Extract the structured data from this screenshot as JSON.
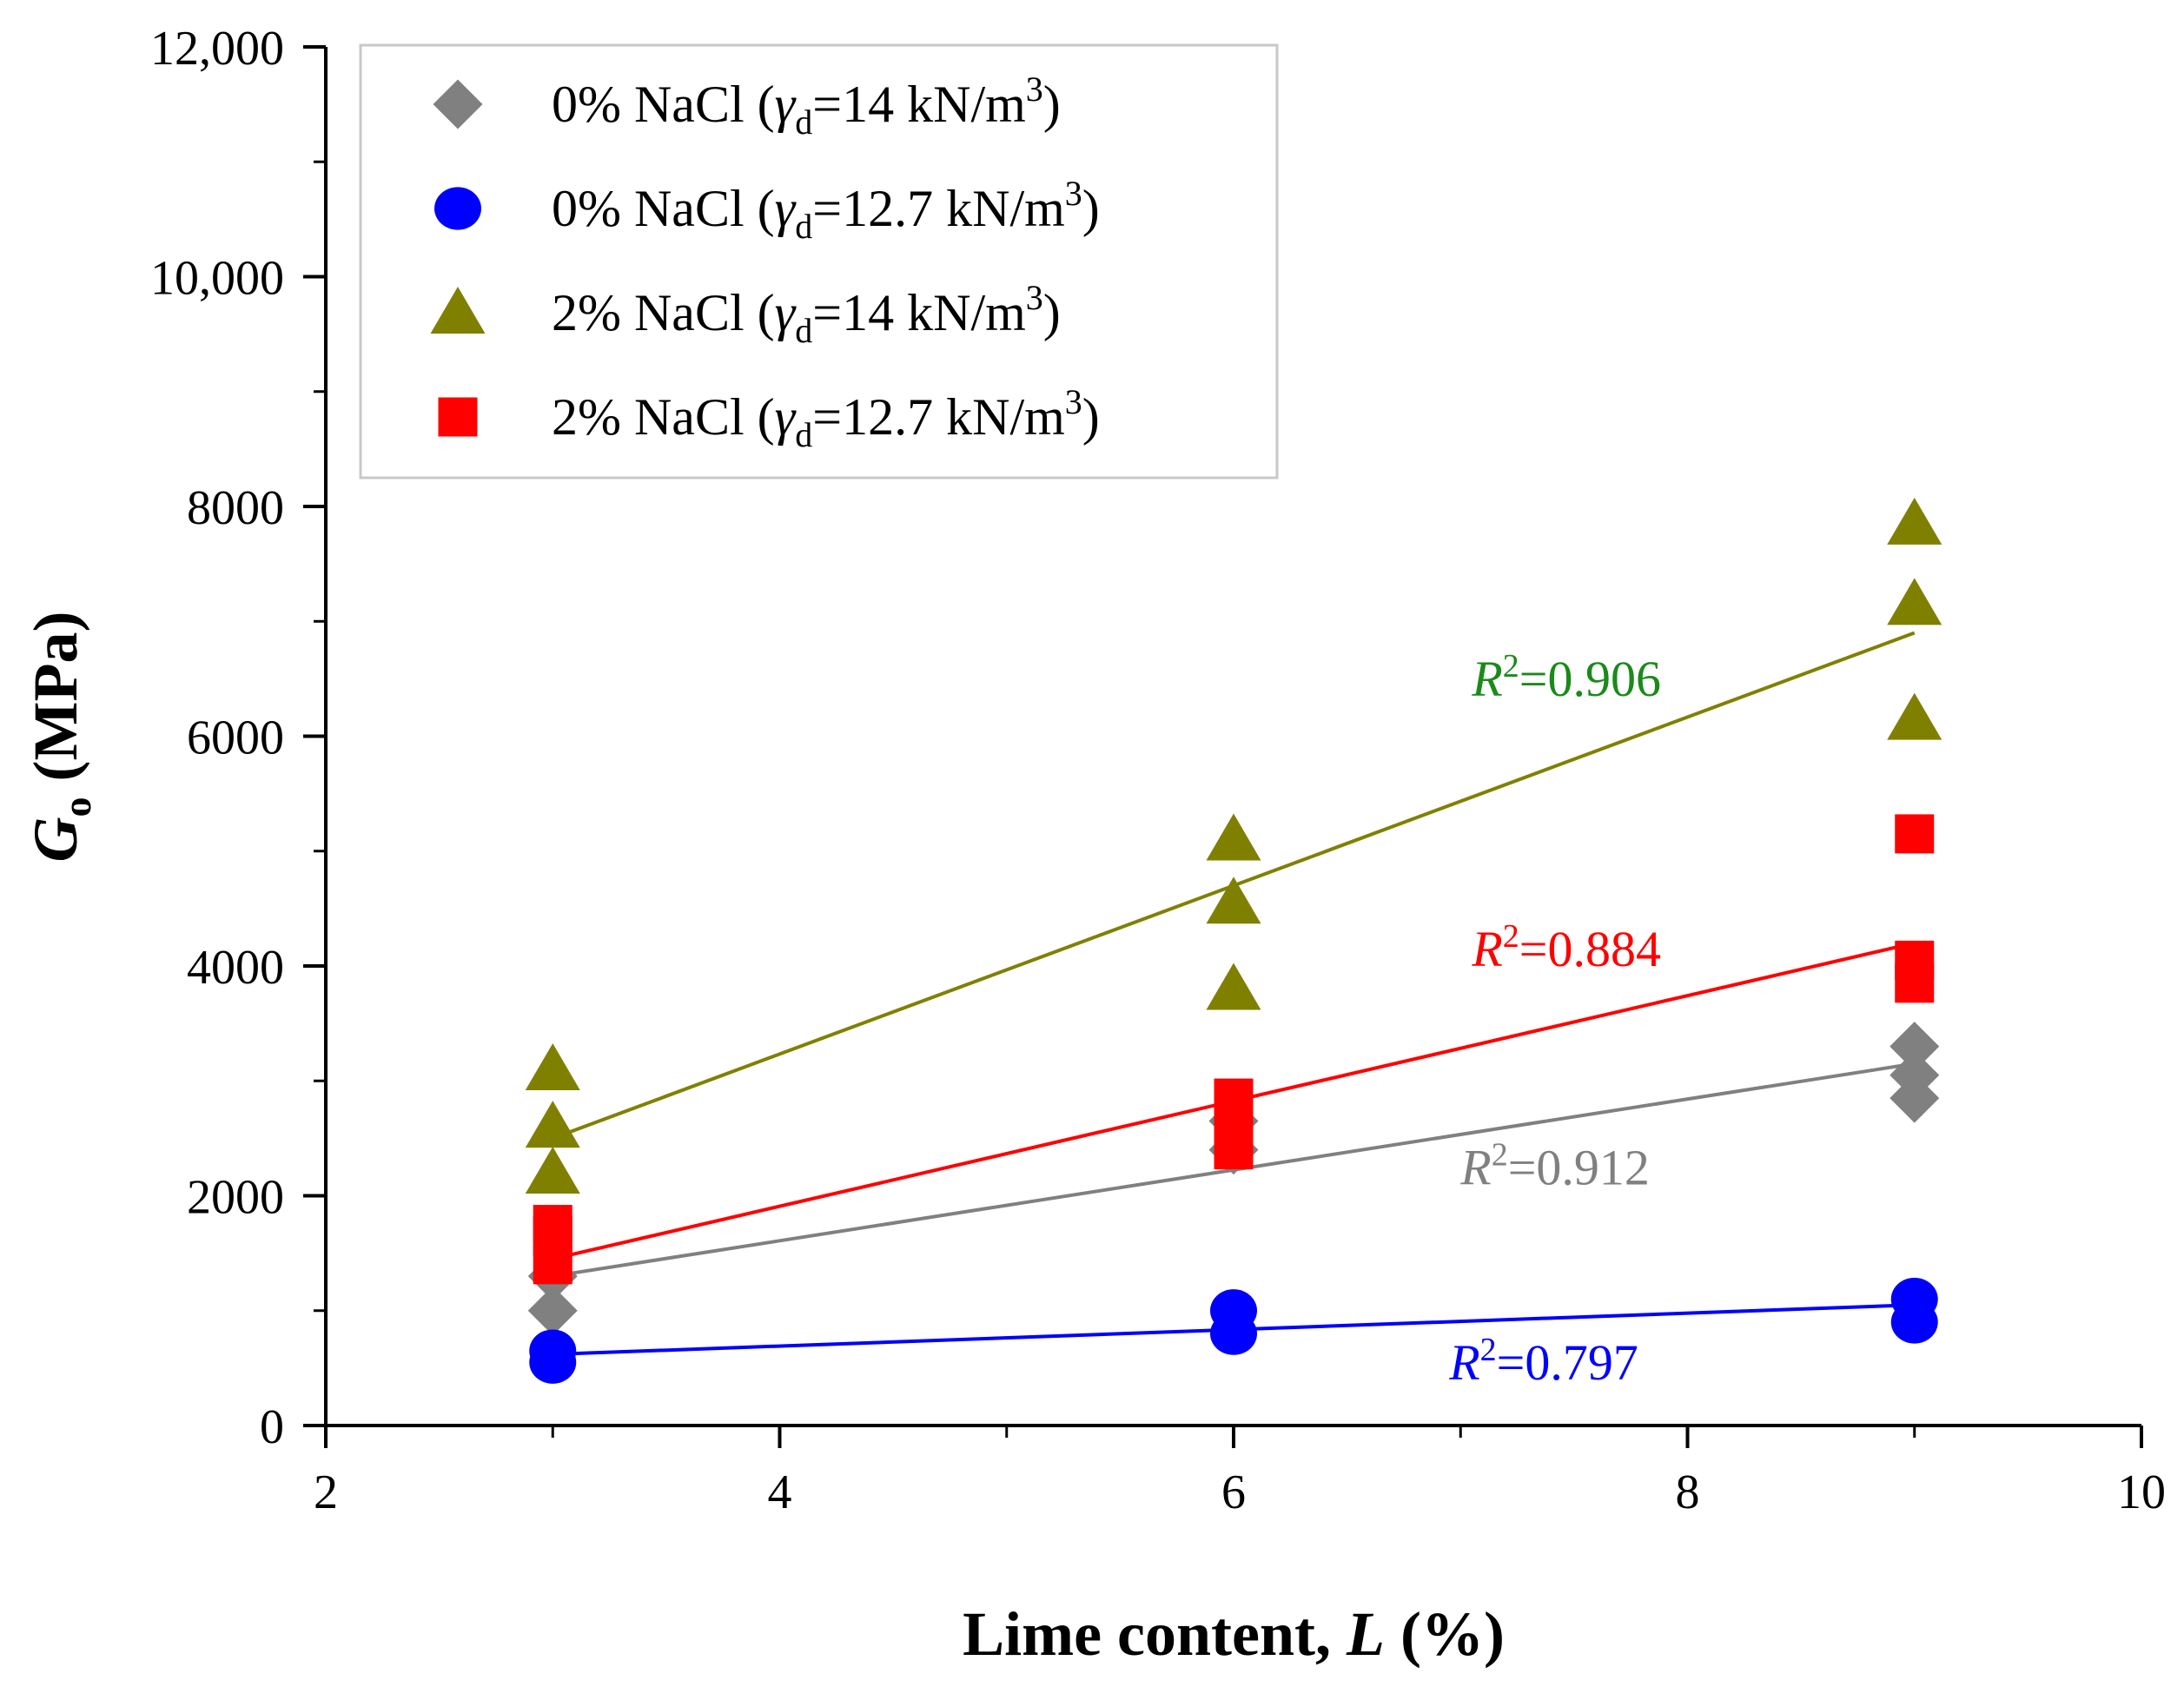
{
  "chart_data": {
    "type": "scatter",
    "xlabel": {
      "pre": "Lime content, ",
      "var": "L",
      "post": " (%)"
    },
    "ylabel": {
      "var": "G",
      "sub": "o",
      "post": " (MPa)"
    },
    "xlim": [
      2,
      10
    ],
    "ylim": [
      0,
      12000
    ],
    "x_ticks": [
      2,
      4,
      6,
      8,
      10
    ],
    "x_tick_labels": [
      "2",
      "4",
      "6",
      "8",
      "10"
    ],
    "y_ticks": [
      0,
      2000,
      4000,
      6000,
      8000,
      10000,
      12000
    ],
    "y_tick_labels": [
      "0",
      "2000",
      "4000",
      "6000",
      "8000",
      "10,000",
      "12,000"
    ],
    "grid": false,
    "legend_position": "top-left",
    "series": [
      {
        "name": "0% NaCl (γd=14 kN/m3)",
        "legend": {
          "pre": "0% NaCl (",
          "gamma": "γ",
          "sub": "d",
          "mid": "=14 kN/m",
          "sup": "3",
          "post": ")"
        },
        "marker": "diamond",
        "color": "#808080",
        "points": [
          [
            3,
            1000
          ],
          [
            3,
            1300
          ],
          [
            6,
            2400
          ],
          [
            6,
            2650
          ],
          [
            9,
            2850
          ],
          [
            9,
            3050
          ],
          [
            9,
            3300
          ]
        ],
        "fit": {
          "x": [
            3,
            9
          ],
          "y": [
            1300,
            3150
          ]
        },
        "r2": {
          "var": "R",
          "sup": "2",
          "val": "=0.912",
          "at": [
            7.0,
            2100
          ]
        }
      },
      {
        "name": "0% NaCl (γd=12.7 kN/m3)",
        "legend": {
          "pre": "0% NaCl (",
          "gamma": "γ",
          "sub": "d",
          "mid": "=12.7 kN/m",
          "sup": "3",
          "post": ")"
        },
        "marker": "circle",
        "color": "#0000ff",
        "points": [
          [
            3,
            550
          ],
          [
            3,
            650
          ],
          [
            6,
            800
          ],
          [
            6,
            1000
          ],
          [
            9,
            900
          ],
          [
            9,
            1100
          ]
        ],
        "fit": {
          "x": [
            3,
            9
          ],
          "y": [
            620,
            1050
          ]
        },
        "r2": {
          "var": "R",
          "sup": "2",
          "val": "=0.797",
          "at": [
            6.95,
            400
          ]
        }
      },
      {
        "name": "2% NaCl (γd=14 kN/m3)",
        "legend": {
          "pre": "2% NaCl (",
          "gamma": "γ",
          "sub": "d",
          "mid": "=14 kN/m",
          "sup": "3",
          "post": ")"
        },
        "marker": "triangle",
        "color": "#808000",
        "points": [
          [
            3,
            2200
          ],
          [
            3,
            2600
          ],
          [
            3,
            3100
          ],
          [
            6,
            3800
          ],
          [
            6,
            4550
          ],
          [
            6,
            5100
          ],
          [
            9,
            6150
          ],
          [
            9,
            7150
          ],
          [
            9,
            7850
          ]
        ],
        "fit": {
          "x": [
            3,
            9
          ],
          "y": [
            2500,
            6900
          ]
        },
        "r2": {
          "var": "R",
          "sup": "2",
          "val": "=0.906",
          "at": [
            7.05,
            6350
          ]
        }
      },
      {
        "name": "2% NaCl (γd=12.7 kN/m3)",
        "legend": {
          "pre": "2% NaCl (",
          "gamma": "γ",
          "sub": "d",
          "mid": "=12.7 kN/m",
          "sup": "3",
          "post": ")"
        },
        "marker": "square",
        "color": "#ff0000",
        "points": [
          [
            3,
            1400
          ],
          [
            3,
            1650
          ],
          [
            3,
            1750
          ],
          [
            6,
            2400
          ],
          [
            6,
            2600
          ],
          [
            6,
            2850
          ],
          [
            9,
            3850
          ],
          [
            9,
            4050
          ],
          [
            9,
            5150
          ]
        ],
        "fit": {
          "x": [
            3,
            9
          ],
          "y": [
            1450,
            4200
          ]
        },
        "r2": {
          "var": "R",
          "sup": "2",
          "val": "=0.884",
          "at": [
            7.05,
            4000
          ]
        }
      }
    ]
  }
}
